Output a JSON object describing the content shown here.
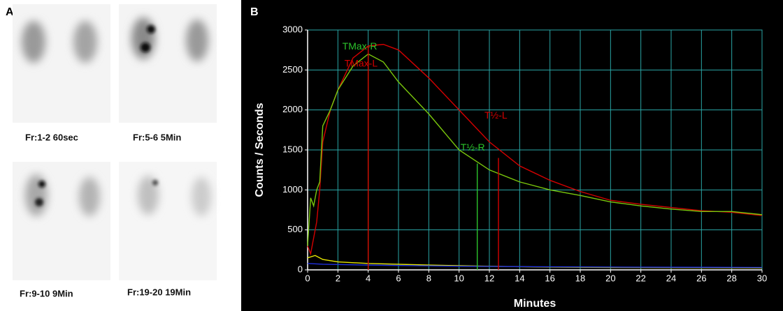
{
  "panel_a": {
    "label": "A",
    "frames": [
      "Fr:1-2 60sec",
      "Fr:5-6 5Min",
      "Fr:9-10 9Min",
      "Fr:19-20 19Min"
    ]
  },
  "chart_data": {
    "type": "line",
    "panel_label": "B",
    "xlabel": "Minutes",
    "ylabel": "Counts / Seconds",
    "xlim": [
      0,
      30
    ],
    "xticks": [
      0,
      2,
      4,
      6,
      8,
      10,
      12,
      14,
      16,
      18,
      20,
      22,
      24,
      26,
      28,
      30
    ],
    "ylim": [
      0,
      3000
    ],
    "yticks": [
      0,
      500,
      1000,
      1500,
      2000,
      2500,
      3000
    ],
    "grid": true,
    "series": [
      {
        "color": "#d40000",
        "x": [
          0,
          0.2,
          0.4,
          0.6,
          0.8,
          1,
          1.5,
          2,
          3,
          4,
          5,
          6,
          8,
          10,
          12,
          14,
          16,
          18,
          20,
          22,
          24,
          26,
          28,
          30
        ],
        "values": [
          300,
          200,
          400,
          600,
          1000,
          1600,
          2000,
          2250,
          2650,
          2800,
          2820,
          2750,
          2400,
          2000,
          1600,
          1300,
          1120,
          980,
          870,
          820,
          780,
          740,
          720,
          680
        ]
      },
      {
        "color": "#7ac70c",
        "x": [
          0,
          0.2,
          0.4,
          0.6,
          0.8,
          1,
          1.5,
          2,
          3,
          4,
          5,
          6,
          8,
          10,
          12,
          14,
          16,
          18,
          20,
          22,
          24,
          26,
          28,
          30
        ],
        "values": [
          300,
          900,
          800,
          1000,
          1100,
          1800,
          2000,
          2250,
          2550,
          2700,
          2600,
          2350,
          1950,
          1500,
          1250,
          1100,
          1000,
          930,
          850,
          800,
          760,
          730,
          730,
          690
        ]
      },
      {
        "color": "#e6e600",
        "x": [
          0,
          0.5,
          1,
          2,
          4,
          8,
          12,
          16,
          20,
          30
        ],
        "values": [
          150,
          180,
          130,
          100,
          80,
          60,
          45,
          35,
          30,
          25
        ]
      },
      {
        "color": "#2030e0",
        "x": [
          0,
          1,
          4,
          10,
          20,
          30
        ],
        "values": [
          80,
          70,
          60,
          45,
          35,
          30
        ]
      }
    ],
    "annotations": [
      {
        "text": "TMax-R",
        "x": 4,
        "y": 2700,
        "color": "#2bc42b"
      },
      {
        "text": "TMax-L",
        "x": 4,
        "y": 2800,
        "color": "#d40000"
      },
      {
        "text": "T½-R",
        "x": 11.2,
        "y": 1330,
        "color": "#2bc42b"
      },
      {
        "text": "T½-L",
        "x": 12.6,
        "y": 1400,
        "color": "#d40000"
      }
    ]
  }
}
